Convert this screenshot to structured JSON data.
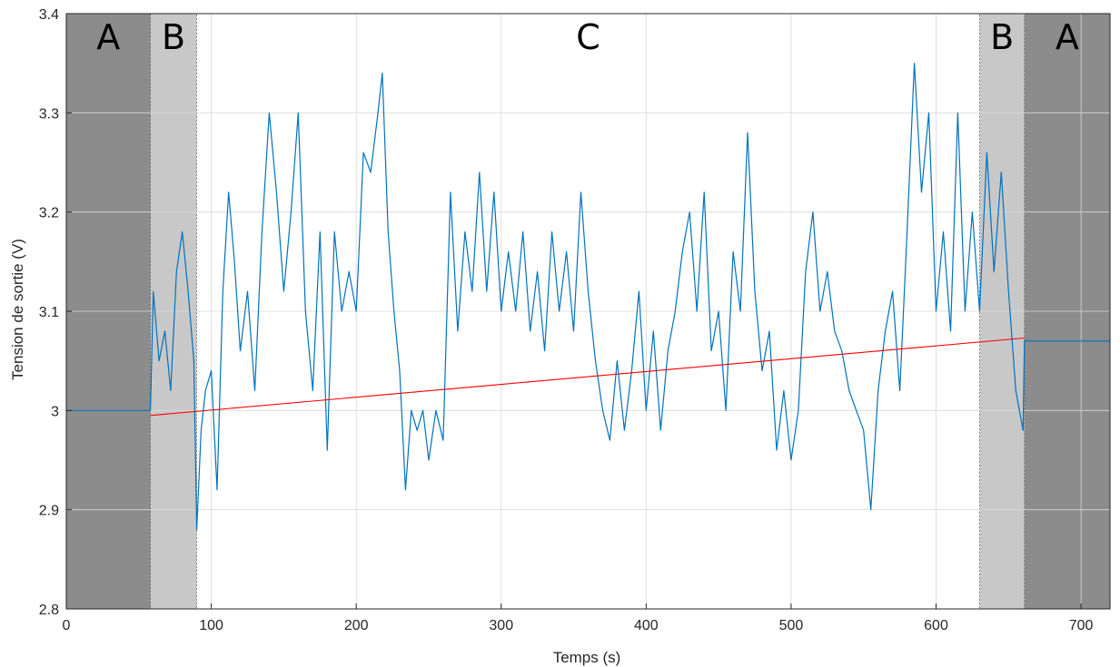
{
  "chart_data": {
    "type": "line",
    "xlabel": "Temps (s)",
    "ylabel": "Tension de sortie (V)",
    "xlim": [
      0,
      720
    ],
    "ylim": [
      2.8,
      3.4
    ],
    "xticks": [
      0,
      100,
      200,
      300,
      400,
      500,
      600,
      700
    ],
    "yticks": [
      2.8,
      2.9,
      3.0,
      3.1,
      3.2,
      3.3,
      3.4
    ],
    "ytick_labels": [
      "2.8",
      "2.9",
      "3",
      "3.1",
      "3.2",
      "3.3",
      "3.4"
    ],
    "xtick_labels": [
      "0",
      "100",
      "200",
      "300",
      "400",
      "500",
      "600",
      "700"
    ],
    "grid": true,
    "regions": [
      {
        "label": "A",
        "x": [
          0,
          58
        ],
        "color": "#8c8c8c"
      },
      {
        "label": "B",
        "x": [
          58,
          90
        ],
        "color": "#c8c8c8"
      },
      {
        "label": "C",
        "x": [
          90,
          630
        ],
        "color": "#ffffff"
      },
      {
        "label": "B",
        "x": [
          630,
          661
        ],
        "color": "#c8c8c8"
      },
      {
        "label": "A",
        "x": [
          661,
          720
        ],
        "color": "#8c8c8c"
      }
    ],
    "series": [
      {
        "color": "#0072bd",
        "x": [
          0,
          10,
          20,
          30,
          40,
          50,
          58,
          60,
          64,
          68,
          72,
          76,
          80,
          84,
          88,
          90,
          93,
          96,
          100,
          104,
          108,
          112,
          116,
          120,
          125,
          130,
          135,
          140,
          145,
          150,
          155,
          160,
          165,
          170,
          175,
          180,
          185,
          190,
          195,
          200,
          205,
          210,
          215,
          218,
          222,
          226,
          230,
          234,
          238,
          242,
          246,
          250,
          255,
          260,
          265,
          270,
          275,
          280,
          285,
          290,
          295,
          300,
          305,
          310,
          315,
          320,
          325,
          330,
          335,
          340,
          345,
          350,
          355,
          360,
          365,
          370,
          375,
          380,
          385,
          390,
          395,
          400,
          405,
          410,
          415,
          420,
          425,
          430,
          435,
          440,
          445,
          450,
          455,
          460,
          465,
          470,
          475,
          480,
          485,
          490,
          495,
          500,
          505,
          510,
          515,
          520,
          525,
          530,
          535,
          540,
          545,
          550,
          555,
          560,
          565,
          570,
          575,
          580,
          585,
          590,
          595,
          600,
          605,
          610,
          615,
          620,
          625,
          630,
          635,
          640,
          645,
          650,
          655,
          660,
          661,
          670,
          680,
          690,
          700,
          710,
          720
        ],
        "y": [
          3.0,
          3.0,
          3.0,
          3.0,
          3.0,
          3.0,
          3.0,
          3.12,
          3.05,
          3.08,
          3.02,
          3.14,
          3.18,
          3.12,
          3.05,
          2.88,
          2.98,
          3.02,
          3.04,
          2.92,
          3.12,
          3.22,
          3.15,
          3.06,
          3.12,
          3.02,
          3.18,
          3.3,
          3.22,
          3.12,
          3.2,
          3.3,
          3.1,
          3.02,
          3.18,
          2.96,
          3.18,
          3.1,
          3.14,
          3.1,
          3.26,
          3.24,
          3.3,
          3.34,
          3.18,
          3.1,
          3.04,
          2.92,
          3.0,
          2.98,
          3.0,
          2.95,
          3.0,
          2.97,
          3.22,
          3.08,
          3.18,
          3.12,
          3.24,
          3.12,
          3.22,
          3.1,
          3.16,
          3.1,
          3.18,
          3.08,
          3.14,
          3.06,
          3.18,
          3.1,
          3.16,
          3.08,
          3.22,
          3.12,
          3.05,
          3.0,
          2.97,
          3.05,
          2.98,
          3.04,
          3.12,
          3.0,
          3.08,
          2.98,
          3.06,
          3.1,
          3.16,
          3.2,
          3.1,
          3.22,
          3.06,
          3.1,
          3.0,
          3.16,
          3.1,
          3.28,
          3.12,
          3.04,
          3.08,
          2.96,
          3.02,
          2.95,
          3.0,
          3.14,
          3.2,
          3.1,
          3.14,
          3.08,
          3.06,
          3.02,
          3.0,
          2.98,
          2.9,
          3.02,
          3.08,
          3.12,
          3.02,
          3.18,
          3.35,
          3.22,
          3.3,
          3.1,
          3.18,
          3.08,
          3.3,
          3.1,
          3.2,
          3.1,
          3.26,
          3.14,
          3.24,
          3.12,
          3.02,
          2.98,
          3.07,
          3.07,
          3.07,
          3.07,
          3.07,
          3.07,
          3.07
        ]
      },
      {
        "color": "#ff0000",
        "x": [
          58,
          661
        ],
        "y": [
          2.995,
          3.073
        ]
      }
    ]
  }
}
